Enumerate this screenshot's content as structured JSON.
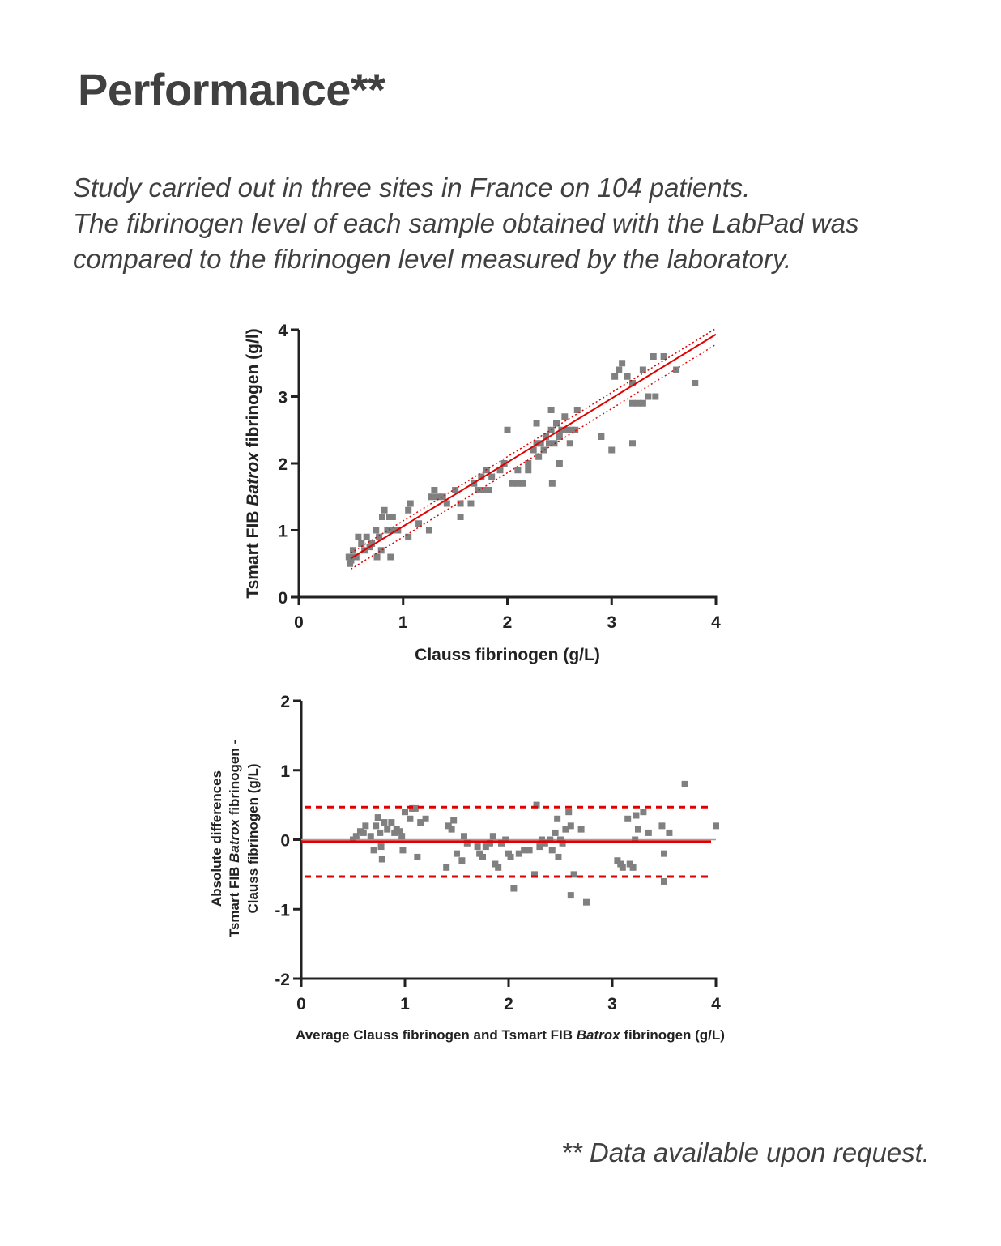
{
  "page": {
    "title": "Performance**",
    "intro_lines": [
      "Study carried out in three sites in France on 104 patients.",
      "The fibrinogen level of each sample obtained with the LabPad was",
      "compared to the fibrinogen level measured by the laboratory."
    ],
    "footnote": "** Data available upon request."
  },
  "colors": {
    "text": "#404040",
    "axis": "#222222",
    "point": "#808080",
    "line": "#e00000"
  },
  "chart_data": [
    {
      "type": "scatter",
      "xlabel": "Clauss fibrinogen (g/L)",
      "ylabel_parts": [
        "Tsmart FIB ",
        "Batrox",
        " fibrinogen (g/l)"
      ],
      "xlim": [
        0,
        4
      ],
      "ylim": [
        0,
        4
      ],
      "xticks": [
        "0",
        "1",
        "2",
        "3",
        "4"
      ],
      "yticks": [
        "0",
        "1",
        "2",
        "3",
        "4"
      ],
      "grid": false,
      "regression": {
        "x": [
          0.5,
          4
        ],
        "y": [
          0.58,
          3.93
        ]
      },
      "confidence_band": {
        "upper": {
          "x": [
            0.5,
            4
          ],
          "y": [
            0.66,
            4.02
          ]
        },
        "lower": {
          "x": [
            0.5,
            4
          ],
          "y": [
            0.42,
            3.78
          ]
        }
      },
      "points": [
        [
          0.48,
          0.6
        ],
        [
          0.49,
          0.5
        ],
        [
          0.5,
          0.55
        ],
        [
          0.52,
          0.7
        ],
        [
          0.52,
          0.6
        ],
        [
          0.55,
          0.6
        ],
        [
          0.57,
          0.9
        ],
        [
          0.6,
          0.8
        ],
        [
          0.63,
          0.7
        ],
        [
          0.65,
          0.9
        ],
        [
          0.68,
          0.75
        ],
        [
          0.7,
          0.8
        ],
        [
          0.74,
          1.0
        ],
        [
          0.75,
          0.6
        ],
        [
          0.77,
          0.9
        ],
        [
          0.79,
          0.7
        ],
        [
          0.8,
          1.2
        ],
        [
          0.82,
          1.3
        ],
        [
          0.85,
          1.0
        ],
        [
          0.87,
          1.2
        ],
        [
          0.88,
          0.6
        ],
        [
          0.9,
          1.0
        ],
        [
          0.9,
          1.2
        ],
        [
          0.93,
          1.0
        ],
        [
          0.95,
          1.0
        ],
        [
          1.05,
          0.9
        ],
        [
          1.05,
          1.3
        ],
        [
          1.07,
          1.4
        ],
        [
          1.15,
          1.1
        ],
        [
          1.25,
          1.0
        ],
        [
          1.27,
          1.5
        ],
        [
          1.3,
          1.6
        ],
        [
          1.33,
          1.5
        ],
        [
          1.38,
          1.5
        ],
        [
          1.42,
          1.4
        ],
        [
          1.5,
          1.6
        ],
        [
          1.55,
          1.2
        ],
        [
          1.55,
          1.4
        ],
        [
          1.65,
          1.4
        ],
        [
          1.68,
          1.7
        ],
        [
          1.72,
          1.6
        ],
        [
          1.75,
          1.8
        ],
        [
          1.77,
          1.6
        ],
        [
          1.8,
          1.9
        ],
        [
          1.82,
          1.6
        ],
        [
          1.85,
          1.8
        ],
        [
          1.93,
          1.9
        ],
        [
          1.97,
          2.0
        ],
        [
          2.0,
          2.5
        ],
        [
          2.05,
          1.7
        ],
        [
          2.1,
          1.7
        ],
        [
          2.1,
          1.9
        ],
        [
          2.15,
          1.7
        ],
        [
          2.2,
          1.9
        ],
        [
          2.2,
          2.0
        ],
        [
          2.25,
          2.2
        ],
        [
          2.28,
          2.3
        ],
        [
          2.28,
          2.6
        ],
        [
          2.3,
          2.1
        ],
        [
          2.32,
          2.3
        ],
        [
          2.35,
          2.2
        ],
        [
          2.37,
          2.4
        ],
        [
          2.4,
          2.3
        ],
        [
          2.42,
          2.5
        ],
        [
          2.42,
          2.8
        ],
        [
          2.43,
          1.7
        ],
        [
          2.45,
          2.3
        ],
        [
          2.47,
          2.6
        ],
        [
          2.5,
          2.4
        ],
        [
          2.5,
          2.0
        ],
        [
          2.52,
          2.5
        ],
        [
          2.55,
          2.7
        ],
        [
          2.58,
          2.5
        ],
        [
          2.6,
          2.3
        ],
        [
          2.62,
          2.5
        ],
        [
          2.65,
          2.5
        ],
        [
          2.67,
          2.8
        ],
        [
          2.9,
          2.4
        ],
        [
          3.0,
          2.2
        ],
        [
          3.03,
          3.3
        ],
        [
          3.07,
          3.4
        ],
        [
          3.1,
          3.5
        ],
        [
          3.15,
          3.3
        ],
        [
          3.2,
          2.3
        ],
        [
          3.2,
          2.9
        ],
        [
          3.2,
          3.2
        ],
        [
          3.25,
          2.9
        ],
        [
          3.3,
          2.9
        ],
        [
          3.3,
          3.4
        ],
        [
          3.35,
          3.0
        ],
        [
          3.4,
          3.6
        ],
        [
          3.42,
          3.0
        ],
        [
          3.5,
          3.6
        ],
        [
          3.62,
          3.4
        ],
        [
          3.8,
          3.2
        ]
      ]
    },
    {
      "type": "scatter",
      "xlabel_parts": [
        "Average Clauss fibrinogen and Tsmart FIB ",
        "Batrox",
        " fibrinogen (g/L)"
      ],
      "ylabel_lines": [
        [
          "Absolute differences"
        ],
        [
          "Tsmart FIB ",
          "Batrox",
          " fibrinogen -"
        ],
        [
          "Clauss fibrinogen (g/L)"
        ]
      ],
      "xlim": [
        0,
        4
      ],
      "ylim": [
        -2,
        2
      ],
      "xticks": [
        "0",
        "1",
        "2",
        "3",
        "4"
      ],
      "yticks": [
        "-2",
        "-1",
        "0",
        "1",
        "2"
      ],
      "grid": false,
      "mean_bias": -0.03,
      "limits_of_agreement": [
        0.47,
        -0.53
      ],
      "zero_line": 0,
      "points": [
        [
          0.5,
          0.0
        ],
        [
          0.53,
          0.05
        ],
        [
          0.57,
          0.12
        ],
        [
          0.6,
          0.1
        ],
        [
          0.62,
          0.2
        ],
        [
          0.67,
          0.05
        ],
        [
          0.7,
          -0.15
        ],
        [
          0.72,
          0.2
        ],
        [
          0.74,
          0.32
        ],
        [
          0.76,
          0.1
        ],
        [
          0.77,
          -0.1
        ],
        [
          0.78,
          -0.28
        ],
        [
          0.8,
          0.25
        ],
        [
          0.83,
          0.15
        ],
        [
          0.87,
          0.25
        ],
        [
          0.9,
          0.1
        ],
        [
          0.92,
          0.15
        ],
        [
          0.95,
          0.12
        ],
        [
          0.97,
          0.05
        ],
        [
          0.98,
          -0.15
        ],
        [
          1.0,
          0.4
        ],
        [
          1.05,
          0.3
        ],
        [
          1.07,
          0.45
        ],
        [
          1.1,
          0.45
        ],
        [
          1.12,
          -0.25
        ],
        [
          1.15,
          0.25
        ],
        [
          1.2,
          0.3
        ],
        [
          1.4,
          -0.4
        ],
        [
          1.42,
          0.2
        ],
        [
          1.45,
          0.15
        ],
        [
          1.47,
          0.28
        ],
        [
          1.5,
          -0.2
        ],
        [
          1.55,
          -0.3
        ],
        [
          1.57,
          0.05
        ],
        [
          1.6,
          -0.05
        ],
        [
          1.7,
          -0.1
        ],
        [
          1.72,
          -0.2
        ],
        [
          1.75,
          -0.25
        ],
        [
          1.78,
          -0.1
        ],
        [
          1.82,
          -0.05
        ],
        [
          1.85,
          0.05
        ],
        [
          1.87,
          -0.35
        ],
        [
          1.9,
          -0.4
        ],
        [
          1.93,
          -0.05
        ],
        [
          1.97,
          0.0
        ],
        [
          2.0,
          -0.2
        ],
        [
          2.02,
          -0.25
        ],
        [
          2.05,
          -0.7
        ],
        [
          2.1,
          -0.2
        ],
        [
          2.15,
          -0.15
        ],
        [
          2.2,
          -0.15
        ],
        [
          2.25,
          -0.5
        ],
        [
          2.27,
          0.5
        ],
        [
          2.3,
          -0.1
        ],
        [
          2.32,
          0.0
        ],
        [
          2.35,
          -0.05
        ],
        [
          2.4,
          0.0
        ],
        [
          2.42,
          -0.15
        ],
        [
          2.45,
          0.1
        ],
        [
          2.47,
          0.3
        ],
        [
          2.48,
          -0.25
        ],
        [
          2.5,
          0.0
        ],
        [
          2.52,
          -0.05
        ],
        [
          2.55,
          0.15
        ],
        [
          2.58,
          0.4
        ],
        [
          2.6,
          0.2
        ],
        [
          2.6,
          -0.8
        ],
        [
          2.63,
          -0.5
        ],
        [
          2.7,
          0.15
        ],
        [
          2.75,
          -0.9
        ],
        [
          3.05,
          -0.3
        ],
        [
          3.08,
          -0.35
        ],
        [
          3.1,
          -0.4
        ],
        [
          3.15,
          0.3
        ],
        [
          3.17,
          -0.35
        ],
        [
          3.2,
          -0.4
        ],
        [
          3.22,
          0.0
        ],
        [
          3.23,
          0.35
        ],
        [
          3.25,
          0.15
        ],
        [
          3.3,
          0.4
        ],
        [
          3.35,
          0.1
        ],
        [
          3.48,
          0.2
        ],
        [
          3.5,
          -0.2
        ],
        [
          3.5,
          -0.6
        ],
        [
          3.55,
          0.1
        ],
        [
          3.7,
          0.8
        ],
        [
          4.0,
          0.2
        ]
      ]
    }
  ]
}
